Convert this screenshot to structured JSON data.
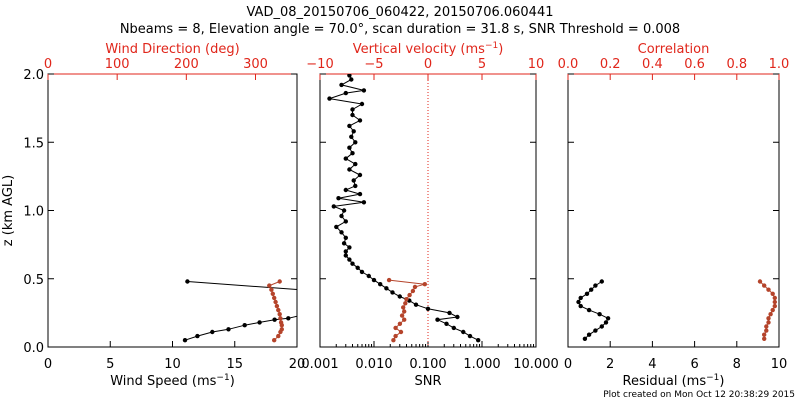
{
  "title_line1": "VAD_08_20150706_060422, 20150706.060441",
  "title_line2": "Nbeams = 8, Elevation angle = 70.0°, scan duration = 31.8 s, SNR Threshold = 0.008",
  "footer": "Plot created on Mon Oct 12 20:38:29 2015",
  "colors": {
    "black": "#000000",
    "red": "#e0261b",
    "brown": "#b5442b",
    "dotted": "#e0261b"
  },
  "chart_data": [
    {
      "id": "wind",
      "type": "line",
      "ylabel": "z (km AGL)",
      "ylim": [
        0,
        2.0
      ],
      "yticks": [
        0.0,
        0.5,
        1.0,
        1.5,
        2.0
      ],
      "ytick_labels": [
        "0.0",
        "0.5",
        "1.0",
        "1.5",
        "2.0"
      ],
      "bottom_axis": {
        "label_prefix": "Wind Speed (ms",
        "label_exp": "−1",
        "label_suffix": ")",
        "range": [
          0,
          20
        ],
        "ticks": [
          0,
          5,
          10,
          15,
          20
        ],
        "tick_labels": [
          "0",
          "5",
          "10",
          "15",
          "20"
        ]
      },
      "top_axis": {
        "label": "Wind Direction (deg)",
        "range": [
          0,
          360
        ],
        "ticks": [
          0,
          100,
          200,
          300
        ],
        "tick_labels": [
          "0",
          "100",
          "200",
          "300"
        ]
      },
      "series": [
        {
          "name": "Wind Speed",
          "axis": "bottom",
          "color": "black",
          "points": [
            [
              11.0,
              0.05
            ],
            [
              12.0,
              0.08
            ],
            [
              13.2,
              0.11
            ],
            [
              14.5,
              0.13
            ],
            [
              15.8,
              0.16
            ],
            [
              17.0,
              0.18
            ],
            [
              18.2,
              0.2
            ],
            [
              19.3,
              0.21
            ],
            [
              20.2,
              0.23
            ],
            [
              20.2,
              0.42
            ],
            [
              11.2,
              0.48
            ]
          ]
        },
        {
          "name": "Wind Direction",
          "axis": "top",
          "color": "brown",
          "points": [
            [
              327,
              0.05
            ],
            [
              333,
              0.08
            ],
            [
              336,
              0.11
            ],
            [
              338,
              0.13
            ],
            [
              338,
              0.16
            ],
            [
              337,
              0.18
            ],
            [
              336,
              0.21
            ],
            [
              335,
              0.24
            ],
            [
              333,
              0.27
            ],
            [
              331,
              0.3
            ],
            [
              329,
              0.33
            ],
            [
              327,
              0.36
            ],
            [
              325,
              0.39
            ],
            [
              323,
              0.42
            ],
            [
              320,
              0.45
            ],
            [
              335,
              0.48
            ]
          ]
        }
      ]
    },
    {
      "id": "snr",
      "type": "line",
      "ylim": [
        0,
        2.0
      ],
      "bottom_axis": {
        "label": "SNR",
        "scale": "log",
        "range": [
          0.001,
          10
        ],
        "ticks": [
          0.001,
          0.01,
          0.1,
          1,
          10
        ],
        "tick_labels": [
          "0.001",
          "0.010",
          "0.100",
          "1.000",
          "10.000"
        ]
      },
      "top_axis": {
        "label_prefix": "Vertical velocity (ms",
        "label_exp": "−1",
        "label_suffix": ")",
        "range": [
          -10,
          10
        ],
        "ticks": [
          -10,
          -5,
          0,
          5,
          10
        ],
        "tick_labels": [
          "−10",
          "−5",
          "0",
          "5",
          "10"
        ]
      },
      "reference_line": {
        "axis": "top",
        "value": 0
      },
      "series": [
        {
          "name": "SNR",
          "axis": "bottom",
          "color": "black",
          "points": [
            [
              0.85,
              0.05
            ],
            [
              0.6,
              0.08
            ],
            [
              0.45,
              0.11
            ],
            [
              0.3,
              0.14
            ],
            [
              0.22,
              0.17
            ],
            [
              0.15,
              0.2
            ],
            [
              0.35,
              0.22
            ],
            [
              0.25,
              0.25
            ],
            [
              0.1,
              0.28
            ],
            [
              0.06,
              0.31
            ],
            [
              0.045,
              0.34
            ],
            [
              0.03,
              0.37
            ],
            [
              0.022,
              0.4
            ],
            [
              0.017,
              0.43
            ],
            [
              0.013,
              0.46
            ],
            [
              0.01,
              0.49
            ],
            [
              0.008,
              0.52
            ],
            [
              0.006,
              0.55
            ],
            [
              0.005,
              0.58
            ],
            [
              0.004,
              0.61
            ],
            [
              0.0035,
              0.64
            ],
            [
              0.003,
              0.67
            ],
            [
              0.003,
              0.7
            ],
            [
              0.0035,
              0.73
            ],
            [
              0.0028,
              0.76
            ],
            [
              0.003,
              0.8
            ],
            [
              0.0025,
              0.84
            ],
            [
              0.002,
              0.88
            ],
            [
              0.003,
              0.92
            ],
            [
              0.0025,
              0.96
            ],
            [
              0.0028,
              1.0
            ],
            [
              0.0018,
              1.03
            ],
            [
              0.0065,
              1.06
            ],
            [
              0.0022,
              1.09
            ],
            [
              0.0055,
              1.12
            ],
            [
              0.003,
              1.15
            ],
            [
              0.0045,
              1.18
            ],
            [
              0.0042,
              1.22
            ],
            [
              0.0055,
              1.26
            ],
            [
              0.0035,
              1.3
            ],
            [
              0.0045,
              1.34
            ],
            [
              0.003,
              1.38
            ],
            [
              0.004,
              1.42
            ],
            [
              0.0035,
              1.46
            ],
            [
              0.0045,
              1.5
            ],
            [
              0.0038,
              1.54
            ],
            [
              0.0042,
              1.58
            ],
            [
              0.0035,
              1.62
            ],
            [
              0.0055,
              1.66
            ],
            [
              0.004,
              1.7
            ],
            [
              0.004,
              1.74
            ],
            [
              0.006,
              1.78
            ],
            [
              0.0015,
              1.82
            ],
            [
              0.003,
              1.86
            ],
            [
              0.0065,
              1.88
            ],
            [
              0.0025,
              1.92
            ],
            [
              0.0038,
              1.96
            ],
            [
              0.0035,
              1.99
            ]
          ]
        },
        {
          "name": "Vertical velocity",
          "axis": "top",
          "color": "brown",
          "points": [
            [
              -3.2,
              0.05
            ],
            [
              -3.0,
              0.08
            ],
            [
              -2.5,
              0.11
            ],
            [
              -3.0,
              0.14
            ],
            [
              -2.6,
              0.17
            ],
            [
              -2.2,
              0.2
            ],
            [
              -2.4,
              0.23
            ],
            [
              -2.2,
              0.26
            ],
            [
              -2.3,
              0.29
            ],
            [
              -2.1,
              0.32
            ],
            [
              -2.0,
              0.35
            ],
            [
              -1.7,
              0.38
            ],
            [
              -1.4,
              0.41
            ],
            [
              -1.2,
              0.44
            ],
            [
              -0.3,
              0.46
            ],
            [
              -3.6,
              0.49
            ]
          ]
        }
      ]
    },
    {
      "id": "residual",
      "type": "line",
      "ylim": [
        0,
        2.0
      ],
      "bottom_axis": {
        "label_prefix": "Residual (ms",
        "label_exp": "−1",
        "label_suffix": ")",
        "range": [
          0,
          10
        ],
        "ticks": [
          0,
          2,
          4,
          6,
          8,
          10
        ],
        "tick_labels": [
          "0",
          "2",
          "4",
          "6",
          "8",
          "10"
        ]
      },
      "top_axis": {
        "label": "Correlation",
        "range": [
          0.0,
          1.0
        ],
        "ticks": [
          0.0,
          0.2,
          0.4,
          0.6,
          0.8,
          1.0
        ],
        "tick_labels": [
          "0.0",
          "0.2",
          "0.4",
          "0.6",
          "0.8",
          "1.0"
        ]
      },
      "series": [
        {
          "name": "Residual",
          "axis": "bottom",
          "color": "black",
          "points": [
            [
              0.8,
              0.06
            ],
            [
              1.0,
              0.09
            ],
            [
              1.3,
              0.12
            ],
            [
              1.6,
              0.15
            ],
            [
              1.8,
              0.18
            ],
            [
              1.9,
              0.21
            ],
            [
              1.5,
              0.24
            ],
            [
              1.0,
              0.27
            ],
            [
              0.6,
              0.3
            ],
            [
              0.5,
              0.33
            ],
            [
              0.6,
              0.36
            ],
            [
              0.9,
              0.39
            ],
            [
              1.1,
              0.42
            ],
            [
              1.3,
              0.45
            ],
            [
              1.6,
              0.48
            ]
          ]
        },
        {
          "name": "Correlation",
          "axis": "top",
          "color": "brown",
          "points": [
            [
              0.93,
              0.06
            ],
            [
              0.93,
              0.09
            ],
            [
              0.94,
              0.12
            ],
            [
              0.94,
              0.15
            ],
            [
              0.95,
              0.18
            ],
            [
              0.95,
              0.21
            ],
            [
              0.96,
              0.24
            ],
            [
              0.97,
              0.27
            ],
            [
              0.98,
              0.3
            ],
            [
              0.98,
              0.33
            ],
            [
              0.98,
              0.36
            ],
            [
              0.97,
              0.39
            ],
            [
              0.95,
              0.42
            ],
            [
              0.93,
              0.45
            ],
            [
              0.91,
              0.48
            ]
          ]
        }
      ]
    }
  ]
}
